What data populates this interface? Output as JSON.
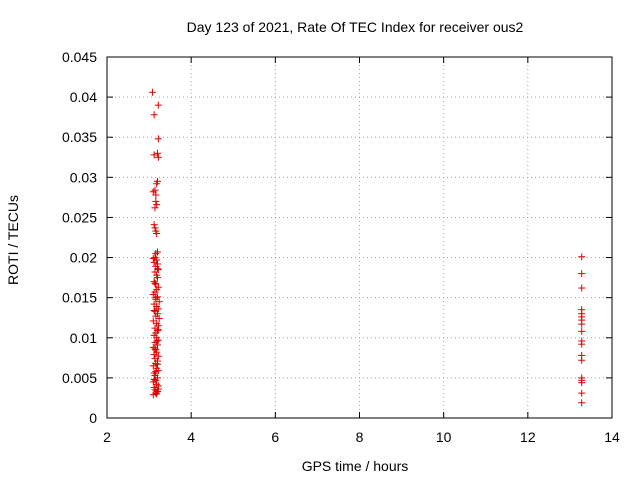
{
  "chart_data": {
    "type": "scatter",
    "title": "Day 123 of 2021, Rate Of TEC Index for receiver ous2",
    "xlabel": "GPS time / hours",
    "ylabel": "ROTI / TECUs",
    "xlim": [
      2,
      14
    ],
    "ylim": [
      0,
      0.045
    ],
    "x_ticks": [
      2,
      4,
      6,
      8,
      10,
      12,
      14
    ],
    "y_ticks": [
      0,
      0.005,
      0.01,
      0.015,
      0.02,
      0.025,
      0.03,
      0.035,
      0.04,
      0.045
    ],
    "y_tick_labels": [
      "0",
      "0.005",
      "0.01",
      "0.015",
      "0.02",
      "0.025",
      "0.03",
      "0.035",
      "0.04",
      "0.045"
    ],
    "grid": true,
    "marker": "+",
    "color": "#e00000",
    "series": [
      {
        "points": [
          [
            3.08,
            0.0406
          ],
          [
            3.12,
            0.0378
          ],
          [
            3.22,
            0.039
          ],
          [
            3.22,
            0.0348
          ],
          [
            3.12,
            0.0328
          ],
          [
            3.2,
            0.033
          ],
          [
            3.22,
            0.0325
          ],
          [
            3.2,
            0.0295
          ],
          [
            3.18,
            0.0292
          ],
          [
            3.14,
            0.0284
          ],
          [
            3.1,
            0.0282
          ],
          [
            3.16,
            0.0278
          ],
          [
            3.16,
            0.027
          ],
          [
            3.18,
            0.0266
          ],
          [
            3.14,
            0.0262
          ],
          [
            3.12,
            0.0241
          ],
          [
            3.14,
            0.0237
          ],
          [
            3.16,
            0.0233
          ],
          [
            3.18,
            0.023
          ],
          [
            3.2,
            0.0207
          ],
          [
            3.16,
            0.0205
          ],
          [
            3.14,
            0.02
          ],
          [
            3.18,
            0.0197
          ],
          [
            3.12,
            0.0194
          ],
          [
            3.2,
            0.0192
          ],
          [
            3.16,
            0.0189
          ],
          [
            3.22,
            0.0185
          ],
          [
            3.14,
            0.0182
          ],
          [
            3.18,
            0.0178
          ],
          [
            3.2,
            0.0175
          ],
          [
            3.12,
            0.017
          ],
          [
            3.16,
            0.0167
          ],
          [
            3.22,
            0.0163
          ],
          [
            3.18,
            0.016
          ],
          [
            3.14,
            0.0157
          ],
          [
            3.1,
            0.0154
          ],
          [
            3.2,
            0.0151
          ],
          [
            3.16,
            0.0148
          ],
          [
            3.24,
            0.0145
          ],
          [
            3.12,
            0.0142
          ],
          [
            3.18,
            0.0139
          ],
          [
            3.22,
            0.0136
          ],
          [
            3.14,
            0.0133
          ],
          [
            3.2,
            0.013
          ],
          [
            3.16,
            0.0127
          ],
          [
            3.24,
            0.0124
          ],
          [
            3.1,
            0.0121
          ],
          [
            3.18,
            0.0118
          ],
          [
            3.22,
            0.0115
          ],
          [
            3.14,
            0.0112
          ],
          [
            3.2,
            0.0109
          ],
          [
            3.16,
            0.0106
          ],
          [
            3.12,
            0.0103
          ],
          [
            3.18,
            0.01
          ],
          [
            3.22,
            0.0097
          ],
          [
            3.14,
            0.0094
          ],
          [
            3.2,
            0.0091
          ],
          [
            3.1,
            0.0088
          ],
          [
            3.16,
            0.0085
          ],
          [
            3.18,
            0.0082
          ],
          [
            3.12,
            0.0079
          ],
          [
            3.22,
            0.0077
          ],
          [
            3.14,
            0.0074
          ],
          [
            3.2,
            0.0071
          ],
          [
            3.16,
            0.0068
          ],
          [
            3.1,
            0.0065
          ],
          [
            3.18,
            0.0062
          ],
          [
            3.22,
            0.0059
          ],
          [
            3.12,
            0.0056
          ],
          [
            3.14,
            0.0053
          ],
          [
            3.2,
            0.005
          ],
          [
            3.16,
            0.0047
          ],
          [
            3.1,
            0.0045
          ],
          [
            3.18,
            0.0042
          ],
          [
            3.22,
            0.004
          ],
          [
            3.12,
            0.0038
          ],
          [
            3.14,
            0.0035
          ],
          [
            3.2,
            0.0033
          ],
          [
            3.16,
            0.0031
          ],
          [
            3.1,
            0.0029
          ],
          [
            3.18,
            0.003
          ],
          [
            3.22,
            0.0036
          ],
          [
            3.12,
            0.0048
          ],
          [
            3.16,
            0.0058
          ],
          [
            3.2,
            0.0067
          ],
          [
            3.14,
            0.0086
          ],
          [
            3.18,
            0.0096
          ],
          [
            3.22,
            0.011
          ],
          [
            3.12,
            0.0134
          ],
          [
            3.16,
            0.015
          ],
          [
            3.14,
            0.0168
          ],
          [
            3.2,
            0.0186
          ],
          [
            3.1,
            0.0199
          ],
          [
            13.28,
            0.0201
          ],
          [
            13.28,
            0.018
          ],
          [
            13.28,
            0.0162
          ],
          [
            13.28,
            0.0135
          ],
          [
            13.28,
            0.013
          ],
          [
            13.28,
            0.0126
          ],
          [
            13.28,
            0.0122
          ],
          [
            13.28,
            0.0117
          ],
          [
            13.28,
            0.0108
          ],
          [
            13.28,
            0.0096
          ],
          [
            13.28,
            0.0092
          ],
          [
            13.28,
            0.0078
          ],
          [
            13.28,
            0.0072
          ],
          [
            13.28,
            0.005
          ],
          [
            13.28,
            0.0047
          ],
          [
            13.28,
            0.0044
          ],
          [
            13.28,
            0.0031
          ],
          [
            13.28,
            0.0019
          ]
        ]
      }
    ]
  }
}
